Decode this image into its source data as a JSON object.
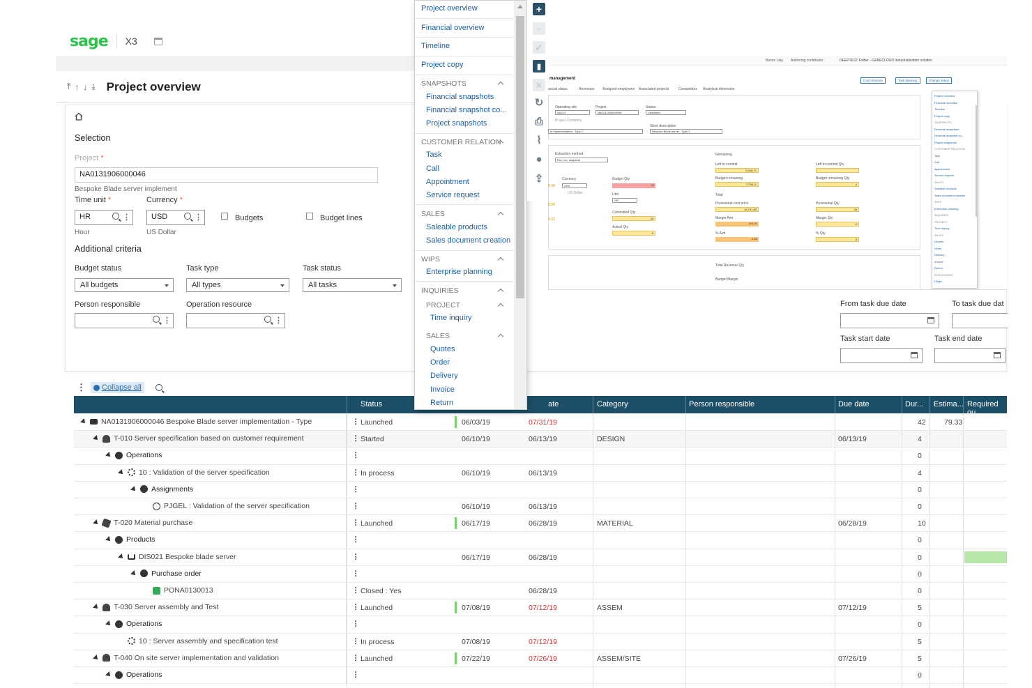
{
  "header": {
    "logo": "sage",
    "product": "X3"
  },
  "page": {
    "title": "Project overview"
  },
  "selection": {
    "title": "Selection",
    "project_label": "Project",
    "project_value": "NA0131906000046",
    "project_desc": "Bespoke Blade server implement",
    "time_unit_label": "Time unit",
    "time_unit_value": "HR",
    "time_unit_desc": "Hour",
    "currency_label": "Currency",
    "currency_value": "USD",
    "currency_desc": "US Dollar",
    "budgets_label": "Budgets",
    "budget_lines_label": "Budget lines"
  },
  "criteria": {
    "title": "Additional criteria",
    "budget_status_label": "Budget status",
    "budget_status_value": "All budgets",
    "task_type_label": "Task type",
    "task_type_value": "All types",
    "task_status_label": "Task status",
    "task_status_value": "All tasks",
    "person_label": "Person responsible",
    "operation_label": "Operation resource",
    "from_due_label": "From task due date",
    "to_due_label": "To task due dat",
    "start_label": "Task start date",
    "end_label": "Task end date"
  },
  "grid": {
    "collapse_label": "Collapse all",
    "columns": [
      "Status",
      "ate",
      "Category",
      "Person responsible",
      "Due date",
      "Dur...",
      "Estima...",
      "Required qu"
    ],
    "rows": [
      {
        "indent": 0,
        "icon": "folder-icon",
        "label": "NA0131906000046 Bespoke Blade server implementation - Type",
        "status": "Launched",
        "start": "06/03/19",
        "end": "07/31/19",
        "end_red": true,
        "category": "",
        "due": "",
        "dur": "42",
        "est": "79.33",
        "bar": true
      },
      {
        "indent": 1,
        "icon": "person-icon",
        "label": "T-010 Server specification based on customer requirement",
        "status": "Started",
        "start": "06/10/19",
        "end": "06/13/19",
        "end_red": false,
        "category": "DESIGN",
        "due": "06/13/19",
        "dur": "4",
        "est": "",
        "bar": false,
        "alt": true
      },
      {
        "indent": 2,
        "icon": "operations-icon",
        "label": "Operations",
        "status": "",
        "start": "",
        "end": "",
        "category": "",
        "due": "",
        "dur": "0",
        "est": "",
        "bar": false,
        "bold": true
      },
      {
        "indent": 3,
        "icon": "gear-icon",
        "label": "10 : Validation of the server specification",
        "status": "In process",
        "start": "06/10/19",
        "end": "06/13/19",
        "category": "",
        "due": "",
        "dur": "4",
        "est": "",
        "bar": false
      },
      {
        "indent": 4,
        "icon": "assignments-icon",
        "label": "Assignments",
        "status": "",
        "start": "",
        "end": "",
        "category": "",
        "due": "",
        "dur": "0",
        "est": "",
        "bar": false,
        "bold": true
      },
      {
        "indent": 5,
        "icon": "resource-icon",
        "label": "PJGEL : Validation of the server specification",
        "status": "",
        "start": "06/10/19",
        "end": "06/13/19",
        "category": "",
        "due": "",
        "dur": "0",
        "est": "",
        "bar": false,
        "noarrow": true
      },
      {
        "indent": 1,
        "icon": "box-icon",
        "label": "T-020 Material purchase",
        "status": "Launched",
        "start": "06/17/19",
        "end": "06/28/19",
        "category": "MATERIAL",
        "due": "06/28/19",
        "dur": "10",
        "est": "",
        "bar": true
      },
      {
        "indent": 2,
        "icon": "products-icon",
        "label": "Products",
        "status": "",
        "start": "",
        "end": "",
        "category": "",
        "due": "",
        "dur": "0",
        "est": "",
        "bar": false,
        "bold": true
      },
      {
        "indent": 3,
        "icon": "bom-icon",
        "label": "DIS021 Bespoke blade server",
        "status": "",
        "start": "06/17/19",
        "end": "06/28/19",
        "category": "",
        "due": "",
        "dur": "0",
        "est": "",
        "bar": false,
        "green": true
      },
      {
        "indent": 4,
        "icon": "purchase-order-icon",
        "label": "Purchase order",
        "status": "",
        "start": "",
        "end": "",
        "category": "",
        "due": "",
        "dur": "0",
        "est": "",
        "bar": false,
        "bold": true
      },
      {
        "indent": 5,
        "icon": "sheet-icon",
        "label": "PONA0130013",
        "status": "Closed : Yes",
        "start": "",
        "end": "06/28/19",
        "category": "",
        "due": "",
        "dur": "0",
        "est": "",
        "bar": false,
        "noarrow": true
      },
      {
        "indent": 1,
        "icon": "person-icon",
        "label": "T-030 Server assembly and Test",
        "status": "Launched",
        "start": "07/08/19",
        "end": "07/12/19",
        "end_red": true,
        "category": "ASSEM",
        "due": "07/12/19",
        "dur": "5",
        "est": "",
        "bar": true
      },
      {
        "indent": 2,
        "icon": "operations-icon",
        "label": "Operations",
        "status": "",
        "start": "",
        "end": "",
        "category": "",
        "due": "",
        "dur": "0",
        "est": "",
        "bar": false,
        "bold": true
      },
      {
        "indent": 3,
        "icon": "gear-icon",
        "label": "10 : Server assembly and specification test",
        "status": "In process",
        "start": "07/08/19",
        "end": "07/12/19",
        "end_red": true,
        "category": "",
        "due": "",
        "dur": "5",
        "est": "",
        "bar": false,
        "noarrow": true
      },
      {
        "indent": 1,
        "icon": "person-icon",
        "label": "T-040 On site server implementation and validation",
        "status": "Launched",
        "start": "07/22/19",
        "end": "07/26/19",
        "end_red": true,
        "category": "ASSEM/SITE",
        "due": "07/26/19",
        "dur": "5",
        "est": "",
        "bar": true
      },
      {
        "indent": 2,
        "icon": "operations-icon",
        "label": "Operations",
        "status": "",
        "start": "",
        "end": "",
        "category": "",
        "due": "",
        "dur": "0",
        "est": "",
        "bar": false,
        "bold": true
      }
    ]
  },
  "menu": {
    "items": [
      {
        "type": "link",
        "label": "Project overview"
      },
      {
        "type": "link",
        "label": "Financial overview"
      },
      {
        "type": "link",
        "label": "Timeline"
      },
      {
        "type": "link",
        "label": "Project copy"
      },
      {
        "type": "header",
        "label": "SNAPSHOTS"
      },
      {
        "type": "sub",
        "label": "Financial snapshots"
      },
      {
        "type": "sub",
        "label": "Financial snapshot co..."
      },
      {
        "type": "sub",
        "label": "Project snapshots"
      },
      {
        "type": "header",
        "label": "CUSTOMER RELATION"
      },
      {
        "type": "sub",
        "label": "Task"
      },
      {
        "type": "sub",
        "label": "Call"
      },
      {
        "type": "sub",
        "label": "Appointment"
      },
      {
        "type": "sub",
        "label": "Service request"
      },
      {
        "type": "header",
        "label": "SALES"
      },
      {
        "type": "sub",
        "label": "Saleable products"
      },
      {
        "type": "sub",
        "label": "Sales document creation"
      },
      {
        "type": "header",
        "label": "WIPS"
      },
      {
        "type": "sub",
        "label": "Enterprise planning"
      },
      {
        "type": "header",
        "label": "INQUIRIES"
      },
      {
        "type": "subheader",
        "label": "PROJECT"
      },
      {
        "type": "sub2",
        "label": "Time inquiry"
      },
      {
        "type": "subheader",
        "label": "SALES"
      },
      {
        "type": "sub2",
        "label": "Quotes"
      },
      {
        "type": "sub2",
        "label": "Order"
      },
      {
        "type": "sub2",
        "label": "Delivery"
      },
      {
        "type": "sub2",
        "label": "Invoice"
      },
      {
        "type": "sub2",
        "label": "Return"
      }
    ]
  },
  "actions": [
    "plus-icon",
    "page-icon",
    "check-icon",
    "trash-icon",
    "close-icon",
    "refresh-icon",
    "print-icon",
    "attach-icon",
    "comment-icon",
    "share-icon"
  ],
  "thumbnail": {
    "title": "management",
    "tabs": [
      "ancial status",
      "Revenues",
      "Assigned employees",
      "Associated projects",
      "Competitors",
      "Analytical dimension"
    ],
    "buttons": [
      "Cost structure",
      "Task planning",
      "Change status"
    ],
    "user": "Bence Laty",
    "role": "Authoring contributor",
    "folder": "DEEPTEST Folder - GENECLOUD Industrialization solution",
    "operating_site_label": "Operating site",
    "operating_site": "NA013",
    "project_label": "Project",
    "project": "NA0131906000046",
    "status_label": "Status",
    "status": "Launched",
    "company_label": "Project Company",
    "short_desc_label": "Short description",
    "type_value": "er implementation - Type C",
    "short_desc": "Bespoke Blade server - Type C",
    "extraction_label": "Extraction method",
    "extraction": "Rev. rec. snapshot",
    "remaining_label": "Remaining",
    "left_commit_label": "Left to commit",
    "left_commit_qty_label": "Left to commit Qty",
    "left_commit": "8,548.71",
    "budget_rem_label": "Budget remaining",
    "budget_rem_qty_label": "Budget remaining Qty",
    "budget_rem": "2,798.11",
    "budget_rem_qty": "-4",
    "total_label": "Total",
    "prov_cost_label": "Provisional cost price",
    "prov_qty_label": "Provisional Qty",
    "prov_cost": "18,701.89",
    "prov_qty": "28",
    "margin_amt_label": "Margin Amt",
    "margin_qty_label": "Margin Qty",
    "margin_amt": "-341.61",
    "margin_qty": "-2",
    "pct_amt_label": "% Amt",
    "pct_qty_label": "% Qty",
    "pct_amt": "-1.83",
    "pct_qty": "-8",
    "currency_label": "Currency",
    "currency": "USD",
    "currency_desc": "US Dollar",
    "budget_qty_label": "Budget Qty",
    "budget_qty": "24",
    "unit_label": "Unit",
    "unit": "HR",
    "committed_label": "Committed Qty",
    "committed": "28",
    "actual_label": "Actual Qty",
    "actual": "8",
    "total_rev_label": "Total Revenue Qty",
    "budget_margin_label": "Budget Margin",
    "left_num": "6.48",
    "left_num2": "8.04",
    "left_num3": "4.33",
    "menu_items": [
      "Project overview",
      "Financial overview",
      "Timeline",
      "Project copy",
      "SNAPSHOTS",
      "Financial snapshots",
      "Financial snapshot co...",
      "Project snapshots",
      "CUSTOMER RELATION",
      "Task",
      "Call",
      "Appointment",
      "Service request",
      "SALES",
      "Saleable products",
      "Sales document creation",
      "WIPS",
      "Enterprise planning",
      "INQUIRIES",
      "PROJECT",
      "Time inquiry",
      "SALES",
      "Quotes",
      "Order",
      "Delivery",
      "Invoice",
      "Return",
      "PURCHASING",
      "Origin"
    ]
  },
  "colors": {
    "brand": "#2dc34a",
    "header": "#1d4e67",
    "link": "#1c5fa6",
    "accent_bar": "#7cd070",
    "danger": "#dd3333"
  }
}
